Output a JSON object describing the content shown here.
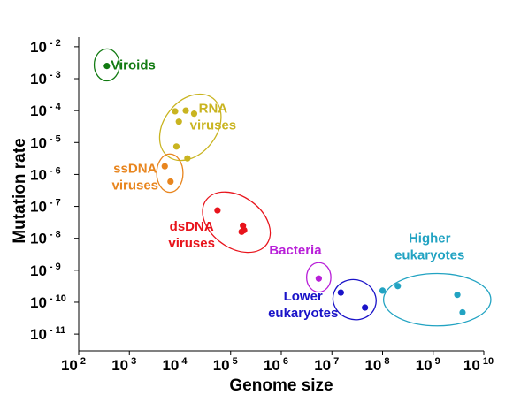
{
  "chart_data": {
    "type": "scatter",
    "xlabel": "Genome size",
    "ylabel": "Mutation rate",
    "x_scale": "log",
    "y_scale": "log",
    "xlim": [
      100,
      10000000000
    ],
    "ylim": [
      3e-12,
      0.02
    ],
    "x_ticks": [
      {
        "value": 100,
        "label": "10",
        "exp": "2"
      },
      {
        "value": 1000,
        "label": "10",
        "exp": "3"
      },
      {
        "value": 10000,
        "label": "10",
        "exp": "4"
      },
      {
        "value": 100000,
        "label": "10",
        "exp": "5"
      },
      {
        "value": 1000000,
        "label": "10",
        "exp": "6"
      },
      {
        "value": 10000000,
        "label": "10",
        "exp": "7"
      },
      {
        "value": 100000000,
        "label": "10",
        "exp": "8"
      },
      {
        "value": 1000000000,
        "label": "10",
        "exp": "9"
      },
      {
        "value": 10000000000,
        "label": "10",
        "exp": "10"
      }
    ],
    "y_ticks": [
      {
        "value": 1e-11,
        "label": "10",
        "exp": "- 11"
      },
      {
        "value": 1e-10,
        "label": "10",
        "exp": "- 10"
      },
      {
        "value": 1e-09,
        "label": "10",
        "exp": "- 9"
      },
      {
        "value": 1e-08,
        "label": "10",
        "exp": "- 8"
      },
      {
        "value": 1e-07,
        "label": "10",
        "exp": "- 7"
      },
      {
        "value": 1e-06,
        "label": "10",
        "exp": "- 6"
      },
      {
        "value": 1e-05,
        "label": "10",
        "exp": "- 5"
      },
      {
        "value": 0.0001,
        "label": "10",
        "exp": "- 4"
      },
      {
        "value": 0.001,
        "label": "10",
        "exp": "- 3"
      },
      {
        "value": 0.01,
        "label": "10",
        "exp": "- 2"
      }
    ],
    "grid": false,
    "series": [
      {
        "name": "Viroids",
        "color": "#117a11",
        "points": [
          {
            "x": 360,
            "y": 0.0025
          }
        ]
      },
      {
        "name": "RNA viruses",
        "color": "#c9b420",
        "points": [
          {
            "x": 8000,
            "y": 9.5e-05
          },
          {
            "x": 13000,
            "y": 0.0001
          },
          {
            "x": 19000,
            "y": 8e-05
          },
          {
            "x": 9500,
            "y": 4.5e-05
          },
          {
            "x": 8500,
            "y": 7.5e-06
          },
          {
            "x": 14000,
            "y": 3.2e-06
          }
        ]
      },
      {
        "name": "ssDNA viruses",
        "color": "#e8851e",
        "points": [
          {
            "x": 5000,
            "y": 1.8e-06
          },
          {
            "x": 6500,
            "y": 6e-07
          }
        ]
      },
      {
        "name": "dsDNA viruses",
        "color": "#e8141c",
        "points": [
          {
            "x": 55000,
            "y": 7.5e-08
          },
          {
            "x": 175000,
            "y": 2.5e-08
          },
          {
            "x": 185000,
            "y": 1.8e-08
          },
          {
            "x": 165000,
            "y": 1.6e-08
          }
        ]
      },
      {
        "name": "Bacteria",
        "color": "#b81fd8",
        "points": [
          {
            "x": 5500000,
            "y": 5.5e-10
          }
        ]
      },
      {
        "name": "Lower eukaryotes",
        "color": "#1a13c8",
        "points": [
          {
            "x": 15000000,
            "y": 2e-10
          },
          {
            "x": 45000000,
            "y": 6.8e-11
          }
        ]
      },
      {
        "name": "Higher eukaryotes",
        "color": "#22a3c2",
        "points": [
          {
            "x": 100000000,
            "y": 2.3e-10
          },
          {
            "x": 200000000,
            "y": 3.2e-10
          },
          {
            "x": 3000000000,
            "y": 1.7e-10
          },
          {
            "x": 3800000000,
            "y": 4.8e-11
          }
        ]
      }
    ],
    "annotations": [
      {
        "series": "Viroids",
        "lines": [
          "Viroids"
        ],
        "x": 430,
        "y": 0.0027,
        "anchor": "start"
      },
      {
        "series": "RNA viruses",
        "lines": [
          "RNA",
          "viruses"
        ],
        "x": 45000,
        "y": 6.5e-05,
        "anchor": "middle"
      },
      {
        "series": "ssDNA viruses",
        "lines": [
          "ssDNA",
          "viruses"
        ],
        "x": 1300,
        "y": 8.5e-07,
        "anchor": "middle"
      },
      {
        "series": "dsDNA viruses",
        "lines": [
          "dsDNA",
          "viruses"
        ],
        "x": 17000,
        "y": 1.3e-08,
        "anchor": "middle"
      },
      {
        "series": "Bacteria",
        "lines": [
          "Bacteria"
        ],
        "x": 1900000,
        "y": 4.3e-09,
        "anchor": "middle"
      },
      {
        "series": "Lower eukaryotes",
        "lines": [
          "Lower",
          "eukaryotes"
        ],
        "x": 2700000,
        "y": 8.5e-11,
        "anchor": "middle"
      },
      {
        "series": "Higher eukaryotes",
        "lines": [
          "Higher",
          "eukaryotes"
        ],
        "x": 850000000,
        "y": 5.5e-09,
        "anchor": "middle"
      }
    ],
    "regions": [
      {
        "series": "Viroids",
        "cx": 360,
        "cy": 0.0027,
        "rx": 0.25,
        "ry": 0.5,
        "rotate": 0
      },
      {
        "series": "RNA viruses",
        "cx": 16000,
        "cy": 3e-05,
        "rx": 0.52,
        "ry": 1.15,
        "rotate": 38
      },
      {
        "series": "ssDNA viruses",
        "cx": 6300,
        "cy": 1.1e-06,
        "rx": 0.26,
        "ry": 0.6,
        "rotate": 0
      },
      {
        "series": "dsDNA viruses",
        "cx": 130000,
        "cy": 3.2e-08,
        "rx": 0.74,
        "ry": 0.8,
        "rotate": 36
      },
      {
        "series": "Bacteria",
        "cx": 5500000,
        "cy": 6e-10,
        "rx": 0.24,
        "ry": 0.46,
        "rotate": 0
      },
      {
        "series": "Lower eukaryotes",
        "cx": 28000000,
        "cy": 1.2e-10,
        "rx": 0.43,
        "ry": 0.62,
        "rotate": 20
      },
      {
        "series": "Higher eukaryotes",
        "cx": 1200000000,
        "cy": 1.2e-10,
        "rx": 1.06,
        "ry": 0.82,
        "rotate": 0
      }
    ]
  }
}
